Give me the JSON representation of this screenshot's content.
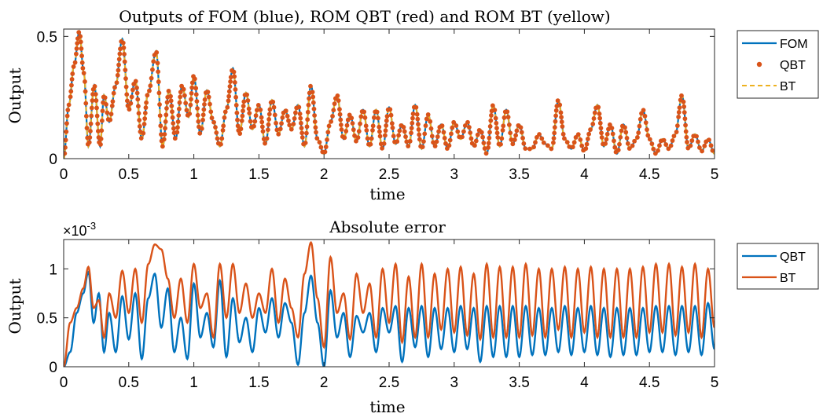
{
  "chart_data": [
    {
      "type": "line",
      "title": "Outputs of FOM (blue), ROM QBT (red) and ROM BT (yellow)",
      "xlabel": "time",
      "ylabel": "Output",
      "xlim": [
        0,
        5
      ],
      "ylim": [
        0,
        0.53
      ],
      "xticks": [
        "0",
        "0.5",
        "1",
        "1.5",
        "2",
        "2.5",
        "3",
        "3.5",
        "4",
        "4.5",
        "5"
      ],
      "yticks": [
        "0",
        "0.5"
      ],
      "legend_position": "outside-right",
      "series": [
        {
          "name": "FOM",
          "style": "solid-line",
          "color": "#0072BD",
          "x": [
            0,
            0.04,
            0.08,
            0.12,
            0.155,
            0.19,
            0.235,
            0.28,
            0.31,
            0.35,
            0.4,
            0.45,
            0.5,
            0.55,
            0.6,
            0.65,
            0.71,
            0.76,
            0.81,
            0.86,
            0.91,
            0.96,
            1.0,
            1.05,
            1.1,
            1.15,
            1.2,
            1.25,
            1.3,
            1.35,
            1.4,
            1.45,
            1.5,
            1.55,
            1.6,
            1.65,
            1.7,
            1.75,
            1.8,
            1.85,
            1.9,
            1.95,
            2.0,
            2.05,
            2.1,
            2.15,
            2.2,
            2.25,
            2.3,
            2.35,
            2.4,
            2.45,
            2.5,
            2.55,
            2.6,
            2.65,
            2.7,
            2.75,
            2.8,
            2.85,
            2.9,
            2.95,
            3.0,
            3.05,
            3.1,
            3.15,
            3.2,
            3.25,
            3.3,
            3.35,
            3.4,
            3.45,
            3.5,
            3.55,
            3.6,
            3.65,
            3.7,
            3.75,
            3.8,
            3.85,
            3.9,
            3.95,
            4.0,
            4.05,
            4.1,
            4.15,
            4.2,
            4.25,
            4.3,
            4.35,
            4.4,
            4.45,
            4.5,
            4.55,
            4.6,
            4.65,
            4.7,
            4.75,
            4.8,
            4.85,
            4.9,
            4.95,
            5.0
          ],
          "y": [
            0.0,
            0.22,
            0.38,
            0.52,
            0.35,
            0.05,
            0.3,
            0.05,
            0.26,
            0.15,
            0.3,
            0.49,
            0.2,
            0.32,
            0.08,
            0.27,
            0.44,
            0.05,
            0.28,
            0.08,
            0.3,
            0.17,
            0.34,
            0.1,
            0.28,
            0.15,
            0.05,
            0.2,
            0.37,
            0.1,
            0.27,
            0.12,
            0.22,
            0.06,
            0.24,
            0.1,
            0.2,
            0.12,
            0.22,
            0.05,
            0.3,
            0.08,
            0.02,
            0.15,
            0.26,
            0.08,
            0.18,
            0.07,
            0.2,
            0.05,
            0.2,
            0.04,
            0.21,
            0.06,
            0.14,
            0.05,
            0.22,
            0.04,
            0.18,
            0.05,
            0.14,
            0.04,
            0.15,
            0.08,
            0.15,
            0.05,
            0.12,
            0.02,
            0.22,
            0.05,
            0.2,
            0.06,
            0.14,
            0.04,
            0.04,
            0.1,
            0.06,
            0.04,
            0.24,
            0.08,
            0.04,
            0.1,
            0.03,
            0.12,
            0.22,
            0.05,
            0.14,
            0.02,
            0.14,
            0.04,
            0.08,
            0.2,
            0.08,
            0.02,
            0.08,
            0.04,
            0.1,
            0.26,
            0.04,
            0.1,
            0.03,
            0.08,
            0.02
          ]
        },
        {
          "name": "QBT",
          "style": "dots",
          "color": "#D95319"
        },
        {
          "name": "BT",
          "style": "dashed-line",
          "color": "#EDB120"
        }
      ]
    },
    {
      "type": "line",
      "title": "Absolute error",
      "xlabel": "time",
      "ylabel": "Output",
      "xlim": [
        0,
        5
      ],
      "ylim": [
        0,
        1.3
      ],
      "exponent_label": "×10^-3",
      "xticks": [
        "0",
        "0.5",
        "1",
        "1.5",
        "2",
        "2.5",
        "3",
        "3.5",
        "4",
        "4.5",
        "5"
      ],
      "yticks": [
        "0",
        "0.5",
        "1"
      ],
      "legend_position": "outside-right",
      "series": [
        {
          "name": "QBT",
          "color": "#0072BD",
          "x": [
            0,
            0.05,
            0.1,
            0.15,
            0.19,
            0.23,
            0.27,
            0.31,
            0.35,
            0.4,
            0.45,
            0.5,
            0.55,
            0.6,
            0.65,
            0.7,
            0.75,
            0.8,
            0.85,
            0.9,
            0.95,
            1.0,
            1.05,
            1.1,
            1.15,
            1.2,
            1.25,
            1.3,
            1.35,
            1.4,
            1.45,
            1.5,
            1.55,
            1.6,
            1.65,
            1.7,
            1.75,
            1.8,
            1.85,
            1.9,
            1.95,
            2.0,
            2.05,
            2.1,
            2.15,
            2.2,
            2.25,
            2.3,
            2.35,
            2.4,
            2.45,
            2.5,
            2.55,
            2.6,
            2.65,
            2.7,
            2.75,
            2.8,
            2.85,
            2.9,
            2.95,
            3.0,
            3.05,
            3.1,
            3.15,
            3.2,
            3.25,
            3.3,
            3.35,
            3.4,
            3.45,
            3.5,
            3.55,
            3.6,
            3.65,
            3.7,
            3.75,
            3.8,
            3.85,
            3.9,
            3.95,
            4.0,
            4.05,
            4.1,
            4.15,
            4.2,
            4.25,
            4.3,
            4.35,
            4.4,
            4.45,
            4.5,
            4.55,
            4.6,
            4.65,
            4.7,
            4.75,
            4.8,
            4.85,
            4.9,
            4.95,
            5.0
          ],
          "y": [
            0.0,
            0.15,
            0.55,
            0.75,
            0.97,
            0.45,
            0.75,
            0.15,
            0.55,
            0.15,
            0.72,
            0.28,
            0.75,
            0.08,
            0.7,
            0.95,
            0.4,
            0.8,
            0.15,
            0.5,
            0.08,
            0.85,
            0.3,
            0.55,
            0.2,
            0.88,
            0.1,
            0.7,
            0.25,
            0.5,
            0.15,
            0.6,
            0.35,
            0.7,
            0.3,
            0.65,
            0.45,
            0.02,
            0.55,
            0.93,
            0.45,
            0.0,
            0.78,
            0.3,
            0.55,
            0.1,
            0.52,
            0.35,
            0.55,
            0.15,
            0.6,
            0.35,
            0.62,
            0.05,
            0.6,
            0.2,
            0.62,
            0.1,
            0.6,
            0.18,
            0.6,
            0.15,
            0.62,
            0.18,
            0.6,
            0.05,
            0.62,
            0.1,
            0.62,
            0.1,
            0.62,
            0.1,
            0.62,
            0.12,
            0.6,
            0.12,
            0.6,
            0.15,
            0.62,
            0.12,
            0.6,
            0.15,
            0.62,
            0.12,
            0.6,
            0.1,
            0.6,
            0.12,
            0.6,
            0.12,
            0.6,
            0.15,
            0.62,
            0.15,
            0.62,
            0.12,
            0.62,
            0.15,
            0.62,
            0.12,
            0.65,
            0.18
          ]
        },
        {
          "name": "BT",
          "color": "#D95319",
          "x": [
            0,
            0.05,
            0.1,
            0.15,
            0.19,
            0.23,
            0.27,
            0.31,
            0.35,
            0.4,
            0.45,
            0.5,
            0.55,
            0.6,
            0.65,
            0.7,
            0.75,
            0.8,
            0.85,
            0.9,
            0.95,
            1.0,
            1.05,
            1.1,
            1.15,
            1.2,
            1.25,
            1.3,
            1.35,
            1.4,
            1.45,
            1.5,
            1.55,
            1.6,
            1.65,
            1.7,
            1.75,
            1.8,
            1.85,
            1.9,
            1.95,
            2.0,
            2.05,
            2.1,
            2.15,
            2.2,
            2.25,
            2.3,
            2.35,
            2.4,
            2.45,
            2.5,
            2.55,
            2.6,
            2.65,
            2.7,
            2.75,
            2.8,
            2.85,
            2.9,
            2.95,
            3.0,
            3.05,
            3.1,
            3.15,
            3.2,
            3.25,
            3.3,
            3.35,
            3.4,
            3.45,
            3.5,
            3.55,
            3.6,
            3.65,
            3.7,
            3.75,
            3.8,
            3.85,
            3.9,
            3.95,
            4.0,
            4.05,
            4.1,
            4.15,
            4.2,
            4.25,
            4.3,
            4.35,
            4.4,
            4.45,
            4.5,
            4.55,
            4.6,
            4.65,
            4.7,
            4.75,
            4.8,
            4.85,
            4.9,
            4.95,
            5.0
          ],
          "y": [
            0.0,
            0.45,
            0.6,
            0.8,
            1.02,
            0.6,
            0.68,
            0.3,
            0.75,
            0.5,
            0.98,
            0.55,
            1.0,
            0.45,
            1.05,
            1.25,
            1.2,
            0.9,
            0.5,
            0.9,
            0.45,
            1.05,
            0.6,
            0.75,
            0.3,
            1.05,
            0.5,
            1.05,
            0.55,
            0.85,
            0.5,
            0.75,
            0.55,
            1.0,
            0.45,
            0.9,
            0.6,
            0.3,
            0.95,
            1.27,
            0.7,
            0.2,
            1.12,
            0.55,
            0.75,
            0.28,
            0.95,
            0.55,
            0.85,
            0.3,
            1.0,
            0.45,
            1.05,
            0.25,
            0.92,
            0.3,
            1.05,
            0.3,
            0.95,
            0.38,
            1.0,
            0.35,
            1.02,
            0.32,
            0.95,
            0.28,
            1.05,
            0.3,
            1.02,
            0.3,
            1.02,
            0.3,
            1.05,
            0.32,
            1.0,
            0.3,
            1.0,
            0.38,
            1.02,
            0.3,
            1.0,
            0.35,
            1.02,
            0.3,
            1.0,
            0.3,
            1.0,
            0.3,
            1.0,
            0.3,
            1.02,
            0.35,
            1.05,
            0.35,
            1.05,
            0.32,
            1.02,
            0.35,
            1.05,
            0.3,
            1.0,
            0.4
          ]
        }
      ]
    }
  ]
}
